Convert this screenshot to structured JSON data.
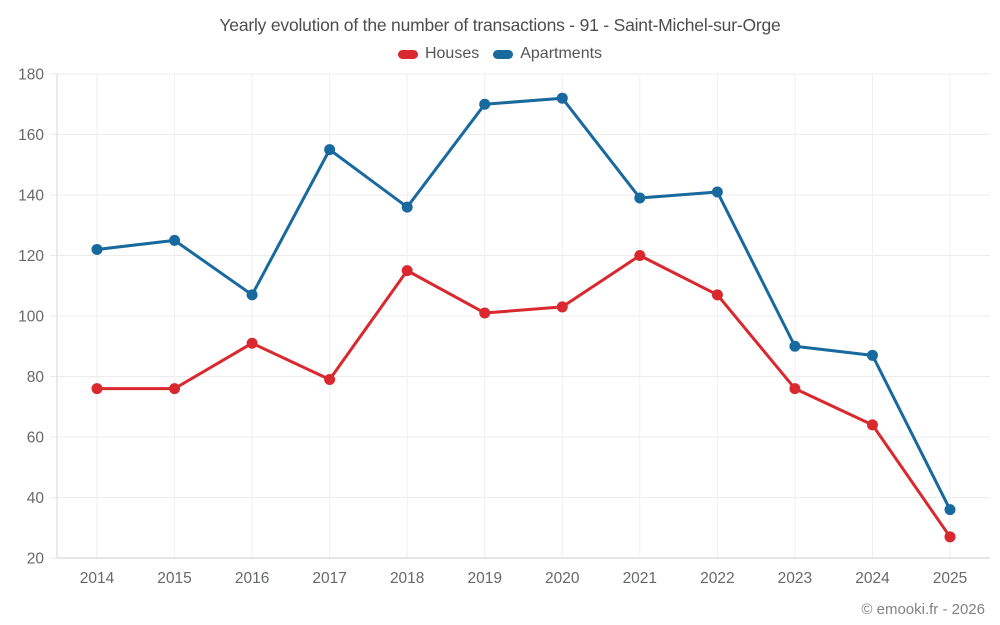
{
  "title": "Yearly evolution of the number of transactions - 91 - Saint-Michel-sur-Orge",
  "footer": {
    "copyright": "© emooki.fr - 2026"
  },
  "chart_data": {
    "type": "line",
    "title": "Yearly evolution of the number of transactions - 91 - Saint-Michel-sur-Orge",
    "x": [
      2014,
      2015,
      2016,
      2017,
      2018,
      2019,
      2020,
      2021,
      2022,
      2023,
      2024,
      2025
    ],
    "series": [
      {
        "name": "Houses",
        "color": "#d9292e",
        "values": [
          76,
          76,
          91,
          79,
          115,
          101,
          103,
          120,
          107,
          76,
          64,
          27
        ]
      },
      {
        "name": "Apartments",
        "color": "#17699e",
        "values": [
          122,
          125,
          107,
          155,
          136,
          170,
          172,
          139,
          141,
          90,
          87,
          36
        ]
      }
    ],
    "xlabel": "",
    "ylabel": "",
    "ylim": [
      20,
      180
    ],
    "ytick_step": 20,
    "grid": true,
    "legend_position": "top",
    "marker": "circle"
  }
}
